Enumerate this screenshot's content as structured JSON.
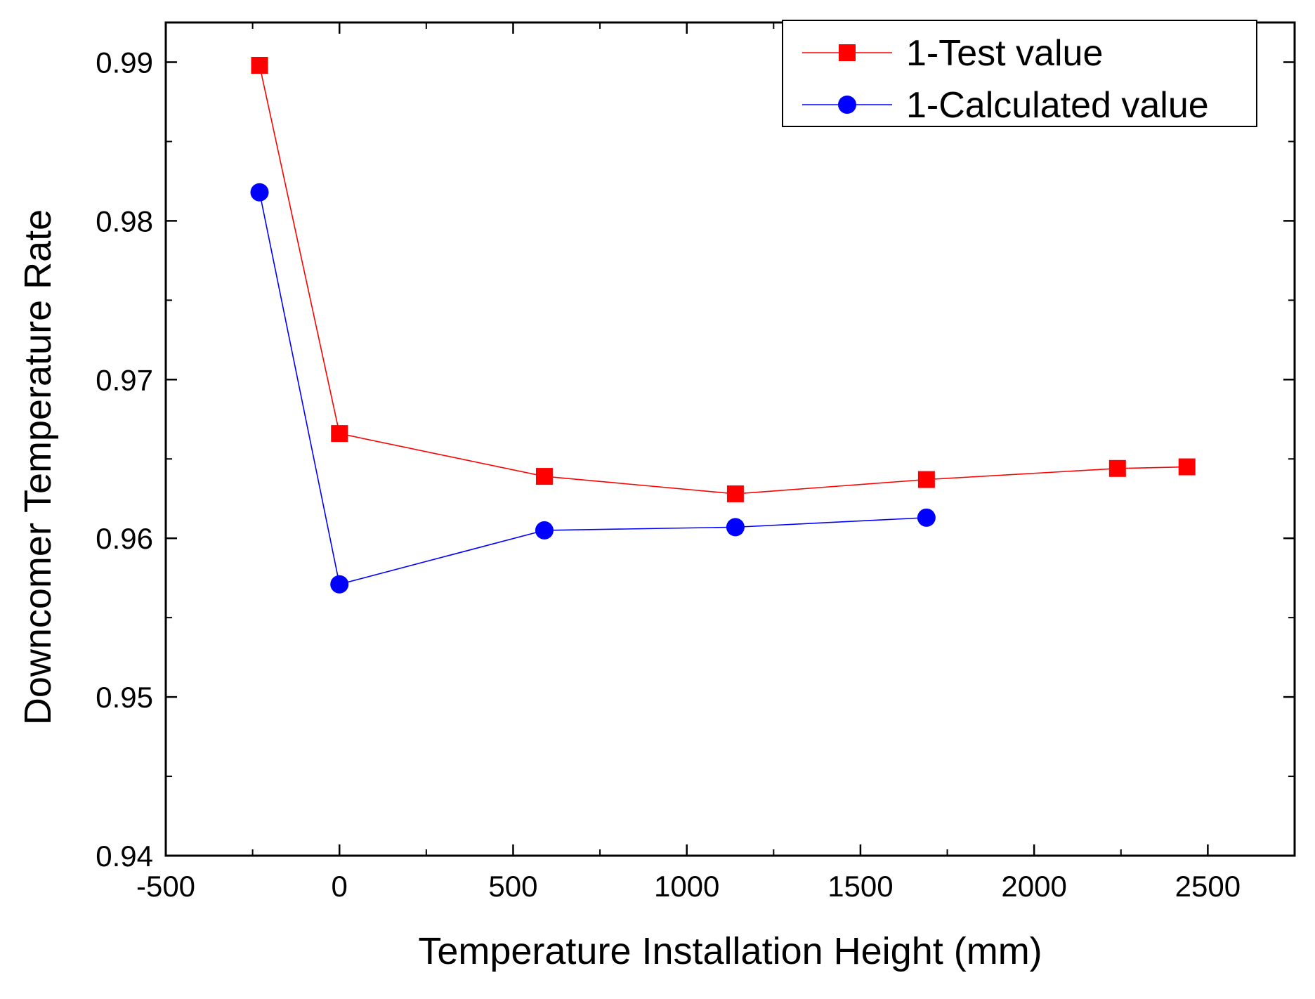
{
  "chart_data": {
    "type": "line",
    "title": "",
    "xlabel": "Temperature Installation Height (mm)",
    "ylabel": "Downcomer Temperature Rate",
    "xlim": [
      -500,
      2750
    ],
    "ylim": [
      0.94,
      0.9925
    ],
    "x_ticks": [
      -500,
      0,
      500,
      1000,
      1500,
      2000,
      2500
    ],
    "x_tick_labels": [
      "-500",
      "0",
      "500",
      "1000",
      "1500",
      "2000",
      "2500"
    ],
    "y_ticks": [
      0.94,
      0.95,
      0.96,
      0.97,
      0.98,
      0.99
    ],
    "y_tick_labels": [
      "0.94",
      "0.95",
      "0.96",
      "0.97",
      "0.98",
      "0.99"
    ],
    "grid": false,
    "legend_position": "top-right",
    "series": [
      {
        "name": "1-Test value",
        "color": "#ff0000",
        "marker": "square",
        "x": [
          -230,
          0,
          590,
          1140,
          1690,
          2240,
          2440
        ],
        "y": [
          0.9898,
          0.9666,
          0.9639,
          0.9628,
          0.9637,
          0.9644,
          0.9645
        ]
      },
      {
        "name": "1-Calculated value",
        "color": "#0000ff",
        "marker": "circle",
        "x": [
          -230,
          0,
          590,
          1140,
          1690
        ],
        "y": [
          0.9818,
          0.9571,
          0.9605,
          0.9607,
          0.9613
        ]
      }
    ]
  }
}
